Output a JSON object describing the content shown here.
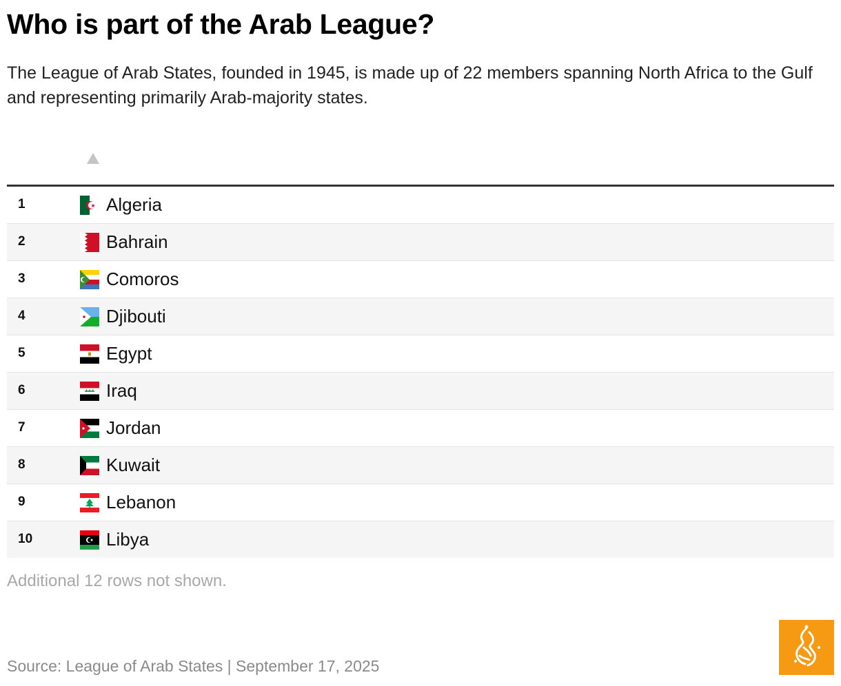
{
  "title": "Who is part of the Arab League?",
  "subtitle": "The League of Arab States, founded in 1945, is made up of 22 members spanning North Africa to the Gulf and representing primarily Arab-majority states.",
  "table": {
    "sort_icon": "sort-ascending-icon",
    "rows": [
      {
        "rank": "1",
        "country": "Algeria",
        "flag_icon": "algeria-flag-icon"
      },
      {
        "rank": "2",
        "country": "Bahrain",
        "flag_icon": "bahrain-flag-icon"
      },
      {
        "rank": "3",
        "country": "Comoros",
        "flag_icon": "comoros-flag-icon"
      },
      {
        "rank": "4",
        "country": "Djibouti",
        "flag_icon": "djibouti-flag-icon"
      },
      {
        "rank": "5",
        "country": "Egypt",
        "flag_icon": "egypt-flag-icon"
      },
      {
        "rank": "6",
        "country": "Iraq",
        "flag_icon": "iraq-flag-icon"
      },
      {
        "rank": "7",
        "country": "Jordan",
        "flag_icon": "jordan-flag-icon"
      },
      {
        "rank": "8",
        "country": "Kuwait",
        "flag_icon": "kuwait-flag-icon"
      },
      {
        "rank": "9",
        "country": "Lebanon",
        "flag_icon": "lebanon-flag-icon"
      },
      {
        "rank": "10",
        "country": "Libya",
        "flag_icon": "libya-flag-icon"
      }
    ]
  },
  "footer": {
    "note": "Additional 12 rows not shown.",
    "source": "Source: League of Arab States | September 17, 2025",
    "logo_icon": "al-jazeera-logo-icon",
    "logo_color": "#f59a12"
  }
}
